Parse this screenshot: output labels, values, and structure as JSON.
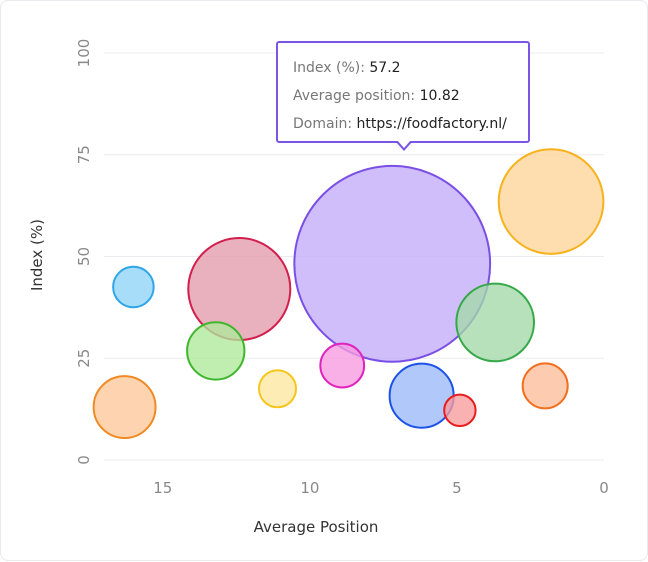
{
  "chart_data": {
    "type": "scatter",
    "xlabel": "Average Position",
    "ylabel": "Index (%)",
    "xlim": [
      0,
      17
    ],
    "x_reversed": true,
    "ylim": [
      0,
      100
    ],
    "x_ticks": [
      15,
      10,
      5,
      0
    ],
    "y_ticks": [
      0,
      25,
      50,
      75,
      100
    ],
    "grid": "horizontal",
    "points": [
      {
        "x": 16.0,
        "y": 42.5,
        "size": 3,
        "fill": "#8fd3f7",
        "stroke": "#2ea6e8"
      },
      {
        "x": 12.4,
        "y": 42.0,
        "size": 19,
        "fill": "#e39aac",
        "stroke": "#d21f4d"
      },
      {
        "x": 7.2,
        "y": 48.2,
        "size": 70,
        "fill": "#c2acf7",
        "stroke": "#7a4fe6"
      },
      {
        "x": 1.8,
        "y": 63.5,
        "size": 20,
        "fill": "#fed497",
        "stroke": "#f7b21d"
      },
      {
        "x": 3.7,
        "y": 33.8,
        "size": 11,
        "fill": "#a3d9a8",
        "stroke": "#36a84a"
      },
      {
        "x": 13.2,
        "y": 26.8,
        "size": 6,
        "fill": "#aee89a",
        "stroke": "#3fb62d"
      },
      {
        "x": 8.9,
        "y": 23.2,
        "size": 3.5,
        "fill": "#f79ae0",
        "stroke": "#e024be"
      },
      {
        "x": 11.1,
        "y": 17.5,
        "size": 2.5,
        "fill": "#fde89f",
        "stroke": "#f7c61d"
      },
      {
        "x": 6.2,
        "y": 15.8,
        "size": 7.5,
        "fill": "#9ab8f9",
        "stroke": "#1c52e8"
      },
      {
        "x": 4.9,
        "y": 12.2,
        "size": 1.8,
        "fill": "#f99b9b",
        "stroke": "#e81c1c"
      },
      {
        "x": 2.0,
        "y": 18.2,
        "size": 3.7,
        "fill": "#fdbe9a",
        "stroke": "#f26f1f"
      },
      {
        "x": 16.3,
        "y": 13.0,
        "size": 7,
        "fill": "#fdc899",
        "stroke": "#f08a25"
      }
    ]
  },
  "tooltip": {
    "index_label": "Index (%):",
    "index_value": "57.2",
    "position_label": "Average position:",
    "position_value": "10.82",
    "domain_label": "Domain:",
    "domain_value": "https://foodfactory.nl/",
    "border_color": "#7a55e6"
  }
}
